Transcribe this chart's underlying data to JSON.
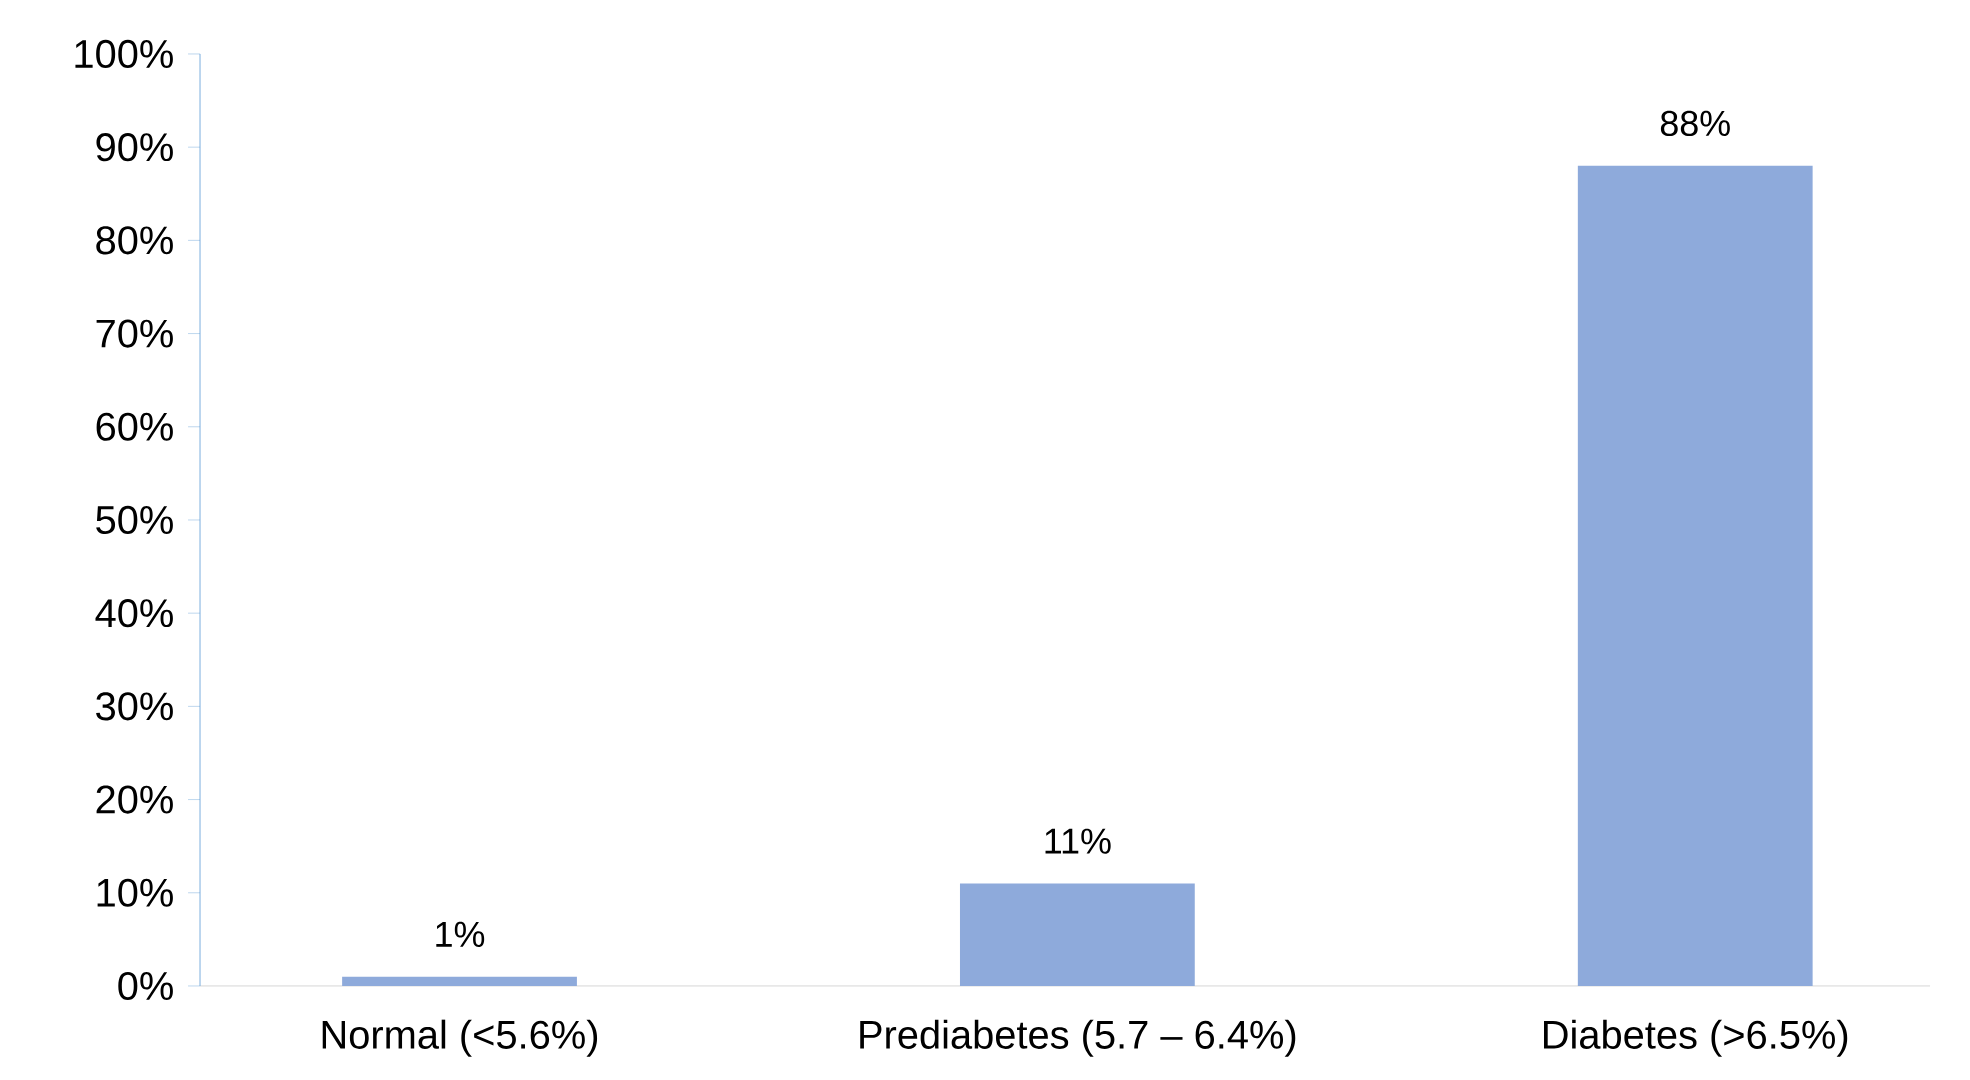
{
  "chart_data": {
    "type": "bar",
    "categories": [
      "Normal (<5.6%)",
      "Prediabetes (5.7 – 6.4%)",
      "Diabetes (>6.5%)"
    ],
    "values": [
      1,
      11,
      88
    ],
    "value_labels": [
      "1%",
      "11%",
      "88%"
    ],
    "color": "#8eaadb",
    "ylim": [
      0,
      100
    ],
    "yticks": [
      {
        "value": 0,
        "label": "0%"
      },
      {
        "value": 10,
        "label": "10%"
      },
      {
        "value": 20,
        "label": "20%"
      },
      {
        "value": 30,
        "label": "30%"
      },
      {
        "value": 40,
        "label": "40%"
      },
      {
        "value": 50,
        "label": "50%"
      },
      {
        "value": 60,
        "label": "60%"
      },
      {
        "value": 70,
        "label": "70%"
      },
      {
        "value": 80,
        "label": "80%"
      },
      {
        "value": 90,
        "label": "90%"
      },
      {
        "value": 100,
        "label": "100%"
      }
    ],
    "grid": false
  }
}
